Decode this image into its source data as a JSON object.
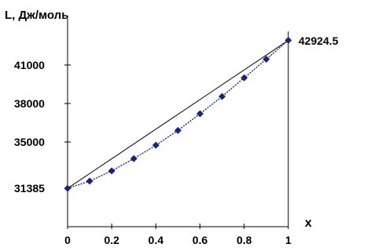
{
  "chart_data": {
    "type": "line",
    "ylabel": "L, Дж/моль",
    "xlabel": "x",
    "xlim": [
      0,
      1
    ],
    "ylim": [
      28400,
      44600
    ],
    "x_ticks": [
      {
        "value": 0,
        "label": "0"
      },
      {
        "value": 0.2,
        "label": "0.2"
      },
      {
        "value": 0.4,
        "label": "0.4"
      },
      {
        "value": 0.6,
        "label": "0.6"
      },
      {
        "value": 0.8,
        "label": "0.8"
      },
      {
        "value": 1,
        "label": "1"
      }
    ],
    "y_ticks": [
      {
        "value": 31385,
        "label": "31385"
      },
      {
        "value": 35000,
        "label": "35000"
      },
      {
        "value": 38000,
        "label": "38000"
      },
      {
        "value": 41000,
        "label": "41000"
      }
    ],
    "end_label": "42924.5",
    "grid": false,
    "series": [
      {
        "name": "",
        "style": "line",
        "color": "#000000",
        "x": [
          0,
          1
        ],
        "y": [
          31385,
          42924.5
        ]
      },
      {
        "name": "",
        "style": "line-markers",
        "color": "#1a237e",
        "marker": "diamond",
        "x": [
          0,
          0.1,
          0.2,
          0.3,
          0.4,
          0.5,
          0.6,
          0.7,
          0.8,
          0.9,
          1
        ],
        "y": [
          31385,
          31950,
          32750,
          33700,
          34750,
          35900,
          37200,
          38550,
          40000,
          41450,
          42924.5
        ]
      }
    ]
  }
}
